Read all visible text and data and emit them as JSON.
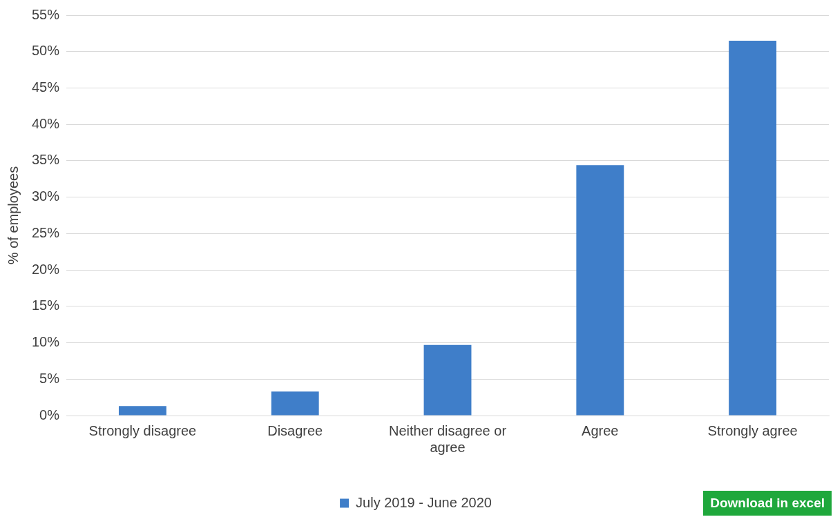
{
  "chart_data": {
    "type": "bar",
    "ylabel": "% of employees",
    "categories": [
      "Strongly disagree",
      "Disagree",
      "Neither disagree or agree",
      "Agree",
      "Strongly agree"
    ],
    "series": [
      {
        "name": "July 2019 - June 2020",
        "color": "#3f7ec9",
        "values": [
          1.3,
          3.3,
          9.7,
          34.4,
          51.5
        ]
      }
    ],
    "ylim": [
      0,
      55
    ],
    "yticks": [
      {
        "value": 0,
        "label": "0%"
      },
      {
        "value": 5,
        "label": "5%"
      },
      {
        "value": 10,
        "label": "10%"
      },
      {
        "value": 15,
        "label": "15%"
      },
      {
        "value": 20,
        "label": "20%"
      },
      {
        "value": 25,
        "label": "25%"
      },
      {
        "value": 30,
        "label": "30%"
      },
      {
        "value": 35,
        "label": "35%"
      },
      {
        "value": 40,
        "label": "40%"
      },
      {
        "value": 45,
        "label": "45%"
      },
      {
        "value": 50,
        "label": "50%"
      },
      {
        "value": 55,
        "label": "55%"
      }
    ],
    "grid": "y",
    "legend": "bottom",
    "annotations": [
      "Download in excel"
    ]
  }
}
